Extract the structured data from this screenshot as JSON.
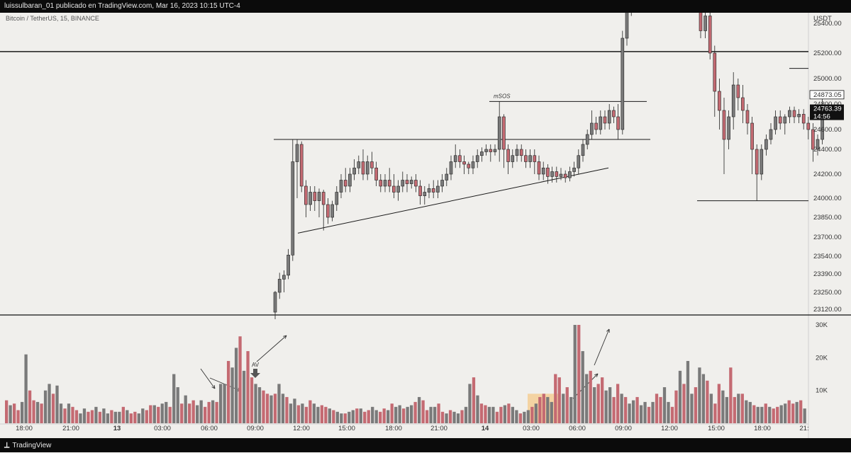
{
  "header": {
    "title": "luissulbaran_01 publicado en TradingView.com, Mar 16, 2023 10:15 UTC-4"
  },
  "footer": {
    "brand": "TradingView",
    "brand_icon": "tradingview-logo-icon"
  },
  "colors": {
    "background": "#f0efec",
    "bull": "#7a7a7a",
    "bear": "#c46a72",
    "line": "#1a1a1a",
    "highlight": "#f5c98a"
  },
  "chart_data": {
    "type": "candlestick",
    "symbol_label": "Bitcoin / TetherUS, 15, BINANCE",
    "currency": "USDT",
    "price_axis": {
      "ticks": [
        25400,
        25200,
        25000,
        24800,
        24600,
        24400,
        24200,
        24000,
        23850,
        23700,
        23540,
        23390,
        23250,
        23120
      ],
      "tick_labels": [
        "25400.00",
        "25200.00",
        "25000.00",
        "24800.00",
        "24600.00",
        "24400.00",
        "24200.00",
        "24000.00",
        "23850.00",
        "23700.00",
        "23540.00",
        "23390.00",
        "23250.00",
        "23120.00"
      ],
      "labels": [
        {
          "value": 24873.05,
          "text": "24873.05",
          "style": "light"
        },
        {
          "value": 24763.39,
          "text": "24763.39",
          "sub": "14:56",
          "style": "dark"
        }
      ]
    },
    "volume_axis": {
      "ticks": [
        10000,
        20000,
        30000
      ],
      "tick_labels": [
        "10K",
        "20K",
        "30K"
      ],
      "ylim": [
        0,
        30000
      ]
    },
    "time_axis": {
      "labels": [
        "18:00",
        "21:00",
        "13",
        "03:00",
        "06:00",
        "09:00",
        "12:00",
        "15:00",
        "18:00",
        "21:00",
        "14",
        "03:00",
        "06:00",
        "09:00",
        "12:00",
        "15:00",
        "18:00",
        "21:"
      ],
      "bold": [
        "13",
        "14"
      ]
    },
    "annotations": [
      {
        "type": "text",
        "text": "mSOS",
        "near_price": 24820
      },
      {
        "type": "text",
        "text": "AV",
        "pane": "volume"
      },
      {
        "type": "hline",
        "price": 25210,
        "extent": "full"
      },
      {
        "type": "hline",
        "price": 24820,
        "extent": "short"
      },
      {
        "type": "hline",
        "price": 24500,
        "extent": "short"
      },
      {
        "type": "hline",
        "price": 23980,
        "extent": "short"
      },
      {
        "type": "hline",
        "price": 25080,
        "extent": "short"
      },
      {
        "type": "trendline",
        "from_price": 23730,
        "to_price": 24250
      },
      {
        "type": "highlight_box",
        "pane": "volume",
        "top_volume": 9000
      }
    ]
  }
}
